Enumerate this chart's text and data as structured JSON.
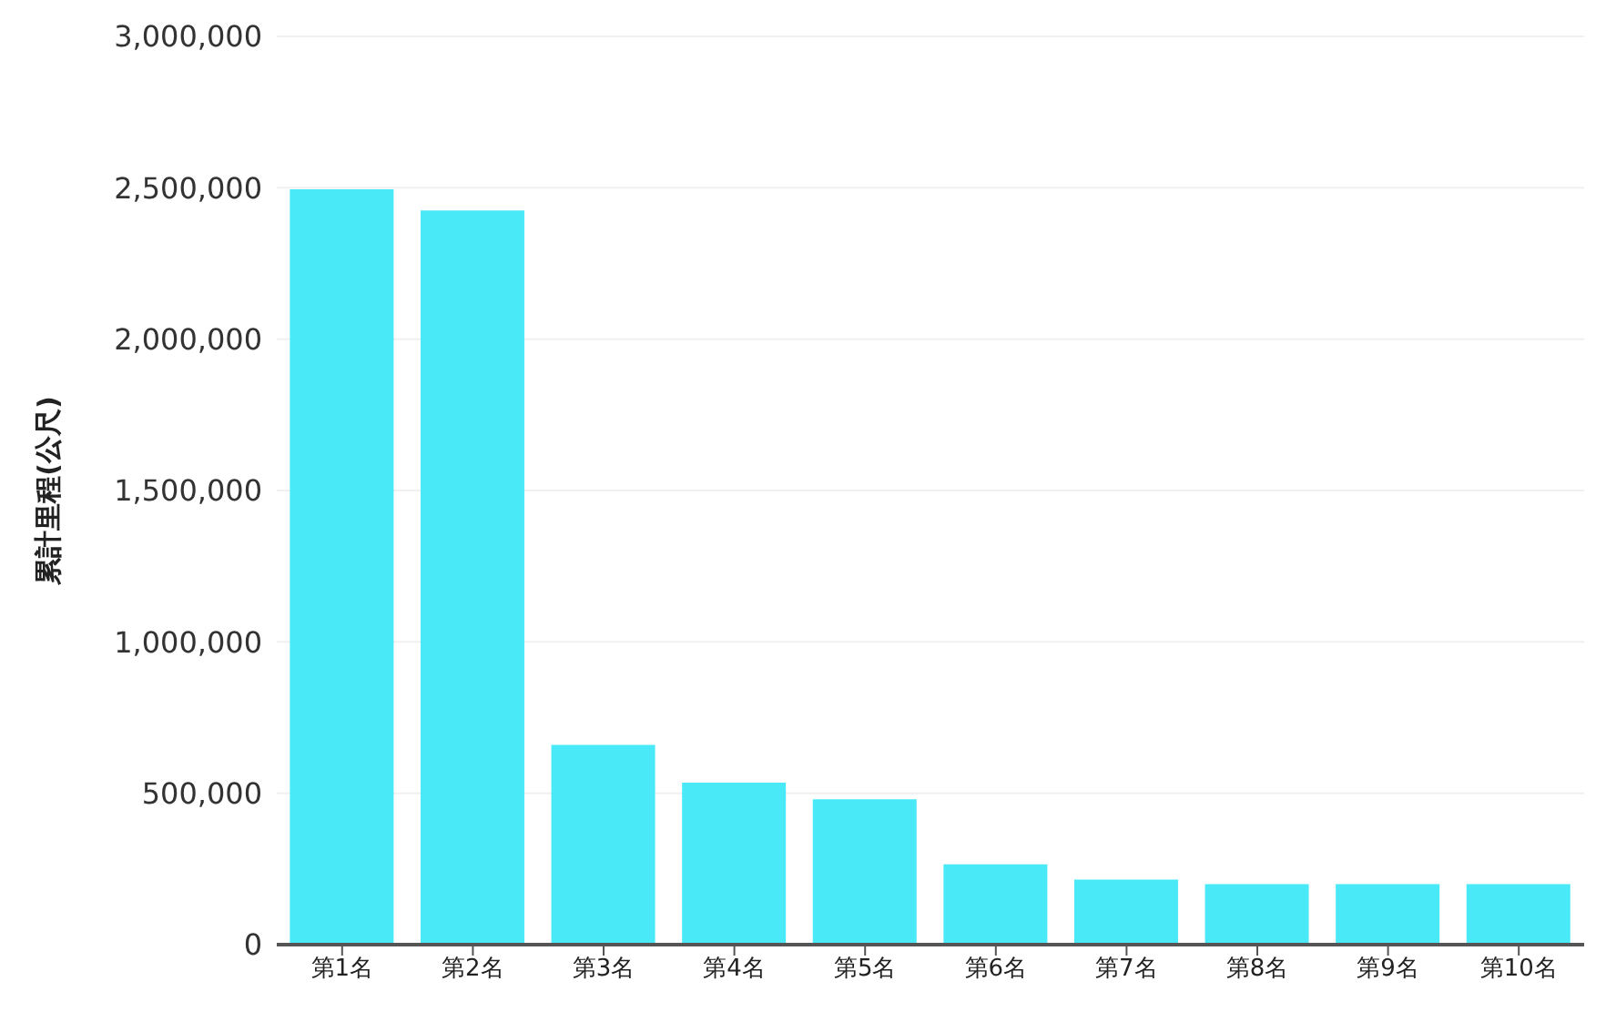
{
  "chart_data": {
    "type": "bar",
    "ylabel": "累計里程(公尺)",
    "categories": [
      "第1名",
      "第2名",
      "第3名",
      "第4名",
      "第5名",
      "第6名",
      "第7名",
      "第8名",
      "第9名",
      "第10名"
    ],
    "values": [
      2495000,
      2425000,
      660000,
      535000,
      480000,
      265000,
      215000,
      200000,
      200000,
      200000
    ],
    "color": "#4ae9f8",
    "ylim": [
      0,
      3000000
    ],
    "yticks": [
      {
        "value": 0,
        "label": "0"
      },
      {
        "value": 500000,
        "label": "500,000"
      },
      {
        "value": 1000000,
        "label": "1,000,000"
      },
      {
        "value": 1500000,
        "label": "1,500,000"
      },
      {
        "value": 2000000,
        "label": "2,000,000"
      },
      {
        "value": 2500000,
        "label": "2,500,000"
      },
      {
        "value": 3000000,
        "label": "3,000,000"
      }
    ],
    "grid": "y"
  }
}
